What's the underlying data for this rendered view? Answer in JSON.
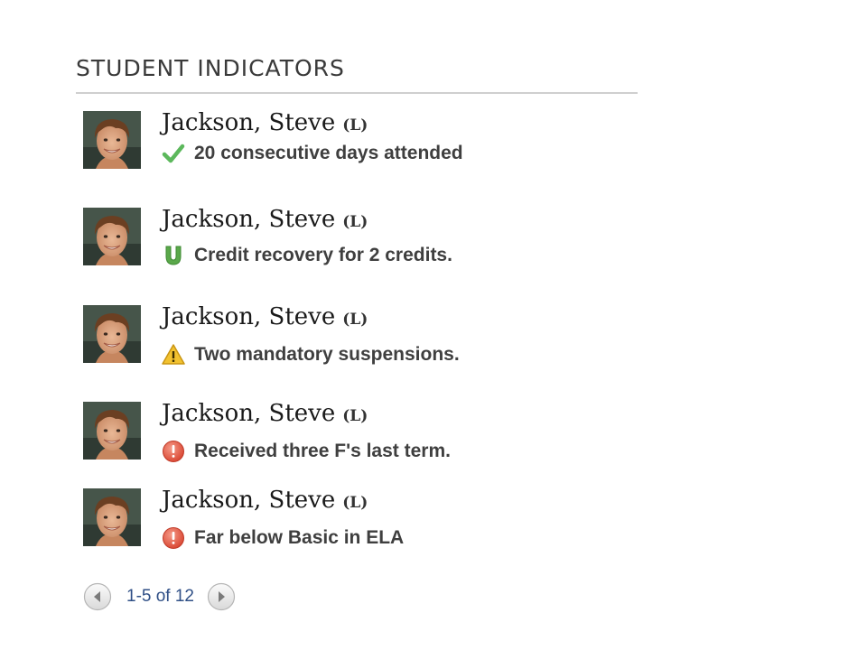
{
  "panel": {
    "title": "STUDENT INDICATORS"
  },
  "rows": [
    {
      "name": "Jackson, Steve",
      "tag": "(L)",
      "icon": "check-icon",
      "icon_color": "#5cb85c",
      "indicator": "20 consecutive days attended"
    },
    {
      "name": "Jackson, Steve",
      "tag": "(L)",
      "icon": "credit-recovery-icon",
      "icon_color": "#5aa84a",
      "indicator": "Credit recovery for 2 credits."
    },
    {
      "name": "Jackson, Steve",
      "tag": "(L)",
      "icon": "warning-icon",
      "icon_color": "#f2c230",
      "indicator": "Two mandatory suspensions."
    },
    {
      "name": "Jackson, Steve",
      "tag": "(L)",
      "icon": "alert-icon",
      "icon_color": "#e0533f",
      "indicator": "Received three F's last term."
    },
    {
      "name": "Jackson, Steve",
      "tag": "(L)",
      "icon": "alert-icon",
      "icon_color": "#e0533f",
      "indicator": "Far below Basic in ELA"
    }
  ],
  "pager": {
    "label": "1-5 of 12",
    "prev_icon": "prev-arrow-icon",
    "next_icon": "next-arrow-icon"
  }
}
